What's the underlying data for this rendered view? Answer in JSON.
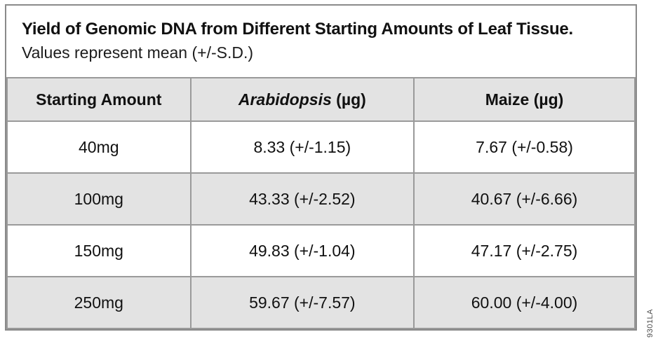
{
  "figure": {
    "title": "Yield of Genomic DNA from Different Starting Amounts of Leaf Tissue.",
    "subtitle": "Values represent mean (+/-S.D.)"
  },
  "table": {
    "headers": {
      "starting_amount": "Starting Amount",
      "arabidopsis_italic": "Arabidopsis",
      "arabidopsis_unit": " (µg)",
      "maize": "Maize (µg)"
    },
    "rows": [
      {
        "amount": "40mg",
        "arabidopsis": "8.33 (+/-1.15)",
        "maize": "7.67 (+/-0.58)"
      },
      {
        "amount": "100mg",
        "arabidopsis": "43.33 (+/-2.52)",
        "maize": "40.67 (+/-6.66)"
      },
      {
        "amount": "150mg",
        "arabidopsis": "49.83 (+/-1.04)",
        "maize": "47.17 (+/-2.75)"
      },
      {
        "amount": "250mg",
        "arabidopsis": "59.67 (+/-7.57)",
        "maize": "60.00 (+/-4.00)"
      }
    ]
  },
  "watermark": "9301LA",
  "colors": {
    "row_shade": "#e3e3e3",
    "grid_line": "#9a9a9a",
    "frame_border": "#8a8a8a",
    "text": "#111111"
  }
}
